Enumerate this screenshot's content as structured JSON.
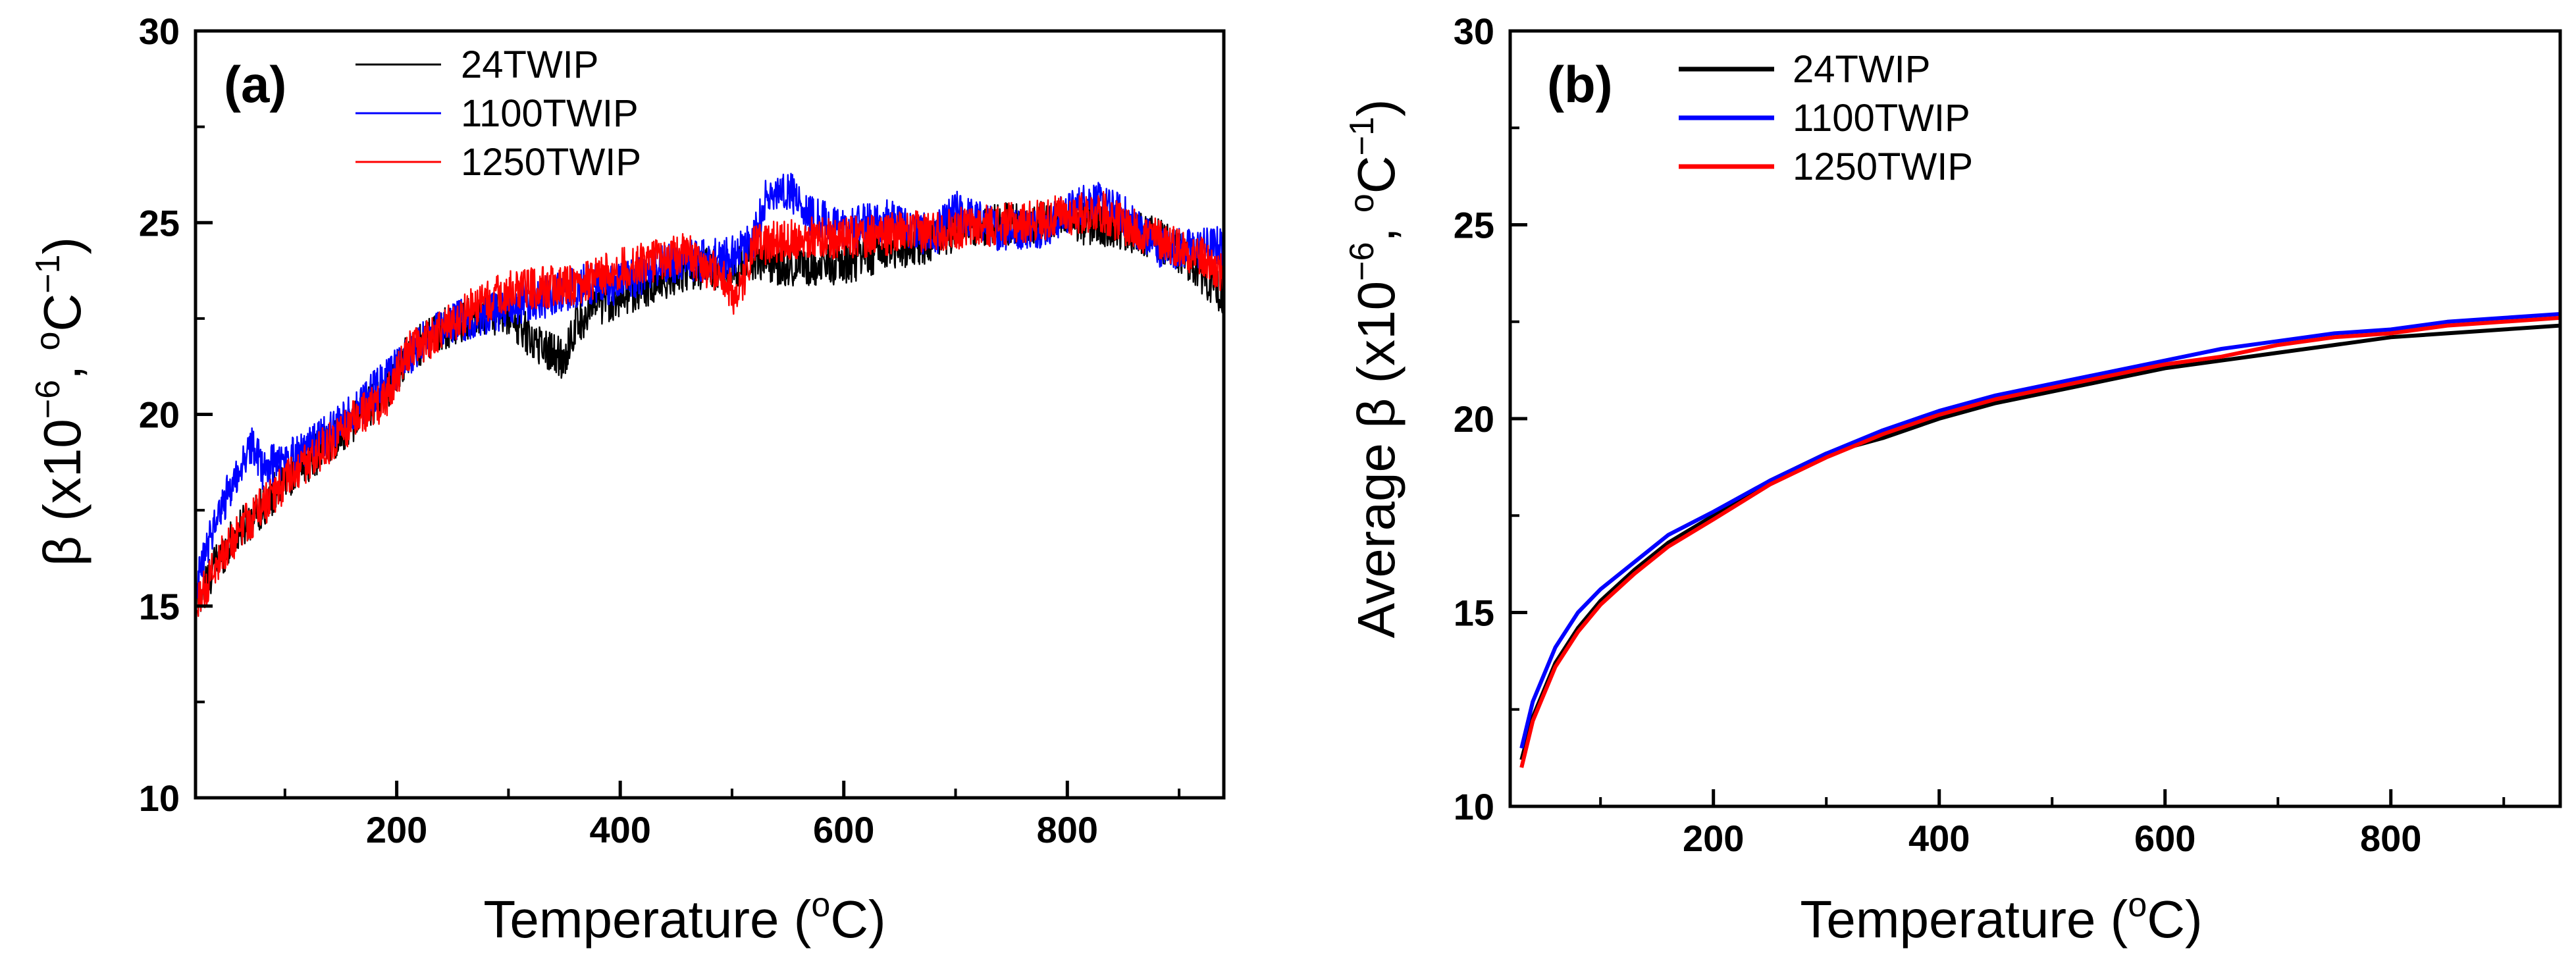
{
  "chart_data": [
    {
      "type": "line",
      "panel_label": "(a)",
      "xlabel": "Temperature (",
      "xlabel_sup": "o",
      "xlabel_unit": "C)",
      "ylabel": "β (x10",
      "ylabel_sup1": "−6",
      "ylabel_mid": ", ",
      "ylabel_sup2": "o",
      "ylabel_unit": "C",
      "ylabel_sup3": "−1",
      "ylabel_end": ")",
      "xlim": [
        20,
        940
      ],
      "ylim": [
        10,
        30
      ],
      "x_ticks": [
        200,
        400,
        600,
        800
      ],
      "x_tick_labels": [
        "200",
        "400",
        "600",
        "800"
      ],
      "y_ticks": [
        10,
        15,
        20,
        25,
        30
      ],
      "y_tick_labels": [
        "10",
        "15",
        "20",
        "25",
        "30"
      ],
      "legend_position": "top-left",
      "line_width": "thin",
      "noisy": true,
      "series": [
        {
          "name": "24TWIP",
          "color": "#000000",
          "x": [
            22,
            40,
            60,
            80,
            100,
            130,
            160,
            190,
            210,
            240,
            270,
            300,
            320,
            340,
            350,
            360,
            380,
            400,
            430,
            460,
            500,
            520,
            540,
            560,
            600,
            640,
            680,
            700,
            720,
            760,
            800,
            840,
            880,
            910,
            940
          ],
          "y": [
            15.2,
            16.2,
            17.0,
            17.6,
            18.3,
            19.0,
            19.8,
            20.6,
            21.6,
            22.2,
            22.6,
            22.6,
            22.0,
            21.6,
            21.4,
            22.4,
            22.8,
            23.1,
            23.4,
            23.8,
            23.8,
            24.0,
            23.9,
            23.9,
            23.9,
            24.3,
            24.5,
            24.8,
            24.9,
            25.0,
            25.0,
            24.9,
            24.6,
            24.0,
            23.1
          ]
        },
        {
          "name": "1100TWIP",
          "color": "#0000ff",
          "x": [
            22,
            35,
            50,
            70,
            80,
            100,
            130,
            160,
            190,
            220,
            250,
            280,
            310,
            340,
            370,
            400,
            430,
            460,
            500,
            520,
            530,
            550,
            570,
            600,
            640,
            680,
            700,
            740,
            780,
            820,
            850,
            880,
            910,
            940
          ],
          "y": [
            15.6,
            17.0,
            18.0,
            19.2,
            18.6,
            18.8,
            19.3,
            20.0,
            20.9,
            21.8,
            22.4,
            22.6,
            22.9,
            23.1,
            23.4,
            23.4,
            23.8,
            24.0,
            24.1,
            24.6,
            25.6,
            25.9,
            25.2,
            24.8,
            25.1,
            24.6,
            25.3,
            24.8,
            24.9,
            25.6,
            25.2,
            24.4,
            24.3,
            24.4
          ]
        },
        {
          "name": "1250TWIP",
          "color": "#ff0000",
          "x": [
            22,
            40,
            60,
            80,
            100,
            130,
            160,
            190,
            210,
            240,
            270,
            300,
            330,
            360,
            380,
            400,
            430,
            460,
            490,
            505,
            520,
            540,
            560,
            600,
            640,
            680,
            720,
            760,
            800,
            830,
            860,
            890,
            920,
            940
          ],
          "y": [
            15.0,
            16.2,
            17.0,
            17.6,
            18.2,
            19.0,
            19.8,
            20.4,
            21.6,
            22.2,
            22.8,
            23.2,
            23.3,
            23.4,
            23.6,
            23.8,
            24.0,
            24.2,
            23.6,
            23.0,
            24.4,
            24.5,
            24.6,
            24.6,
            24.7,
            24.8,
            24.9,
            25.0,
            25.2,
            25.3,
            24.8,
            24.5,
            24.1,
            23.6
          ]
        }
      ]
    },
    {
      "type": "line",
      "panel_label": "(b)",
      "xlabel": "Temperature (",
      "xlabel_sup": "o",
      "xlabel_unit": "C)",
      "ylabel": "Average β (x10",
      "ylabel_sup1": "−6",
      "ylabel_mid": ", ",
      "ylabel_sup2": "o",
      "ylabel_unit": "C",
      "ylabel_sup3": "−1",
      "ylabel_end": ")",
      "xlim": [
        20,
        950
      ],
      "ylim": [
        10,
        30
      ],
      "x_ticks": [
        200,
        400,
        600,
        800
      ],
      "x_tick_labels": [
        "200",
        "400",
        "600",
        "800"
      ],
      "y_ticks": [
        10,
        15,
        20,
        25,
        30
      ],
      "y_tick_labels": [
        "10",
        "15",
        "20",
        "25",
        "30"
      ],
      "legend_position": "top-left",
      "line_width": "thick",
      "noisy": false,
      "series": [
        {
          "name": "24TWIP",
          "color": "#000000",
          "x": [
            30,
            40,
            60,
            80,
            100,
            130,
            160,
            200,
            250,
            300,
            350,
            400,
            450,
            500,
            550,
            600,
            650,
            700,
            750,
            800,
            850,
            900,
            950
          ],
          "y": [
            11.2,
            12.3,
            13.7,
            14.6,
            15.3,
            16.1,
            16.8,
            17.5,
            18.4,
            19.1,
            19.5,
            20.0,
            20.4,
            20.7,
            21.0,
            21.3,
            21.5,
            21.7,
            21.9,
            22.1,
            22.2,
            22.3,
            22.4
          ]
        },
        {
          "name": "1100TWIP",
          "color": "#0000ff",
          "x": [
            30,
            40,
            60,
            80,
            100,
            130,
            160,
            200,
            250,
            300,
            350,
            400,
            450,
            500,
            550,
            600,
            650,
            700,
            750,
            800,
            850,
            900,
            950
          ],
          "y": [
            11.5,
            12.7,
            14.1,
            15.0,
            15.6,
            16.3,
            17.0,
            17.6,
            18.4,
            19.1,
            19.7,
            20.2,
            20.6,
            20.9,
            21.2,
            21.5,
            21.8,
            22.0,
            22.2,
            22.3,
            22.5,
            22.6,
            22.7
          ]
        },
        {
          "name": "1250TWIP",
          "color": "#ff0000",
          "x": [
            30,
            40,
            60,
            80,
            100,
            130,
            160,
            200,
            250,
            300,
            350,
            400,
            450,
            500,
            550,
            600,
            650,
            700,
            750,
            800,
            850,
            900,
            950
          ],
          "y": [
            11.0,
            12.2,
            13.6,
            14.5,
            15.2,
            16.0,
            16.7,
            17.4,
            18.3,
            19.0,
            19.6,
            20.1,
            20.5,
            20.8,
            21.1,
            21.4,
            21.6,
            21.9,
            22.1,
            22.2,
            22.4,
            22.5,
            22.6
          ]
        }
      ]
    }
  ]
}
